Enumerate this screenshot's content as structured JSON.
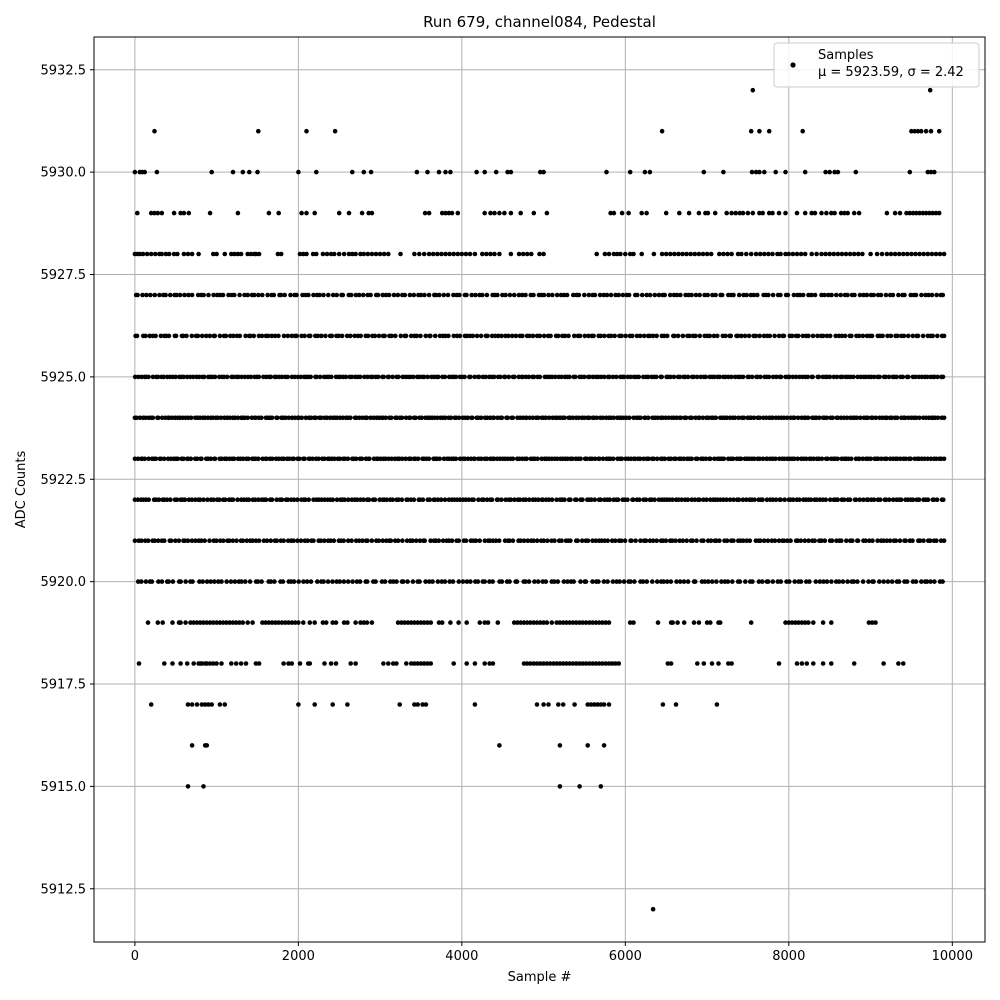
{
  "chart_data": {
    "type": "scatter",
    "title": "Run 679, channel084, Pedestal",
    "xlabel": "Sample #",
    "ylabel": "ADC Counts",
    "xlim": [
      -500,
      10400
    ],
    "ylim": [
      5911.2,
      5933.3
    ],
    "xticks": [
      0,
      2000,
      4000,
      6000,
      8000,
      10000
    ],
    "yticks": [
      5912.5,
      5915.0,
      5917.5,
      5920.0,
      5922.5,
      5925.0,
      5927.5,
      5930.0,
      5932.5
    ],
    "xtick_labels": [
      "0",
      "2000",
      "4000",
      "6000",
      "8000",
      "10000"
    ],
    "ytick_labels": [
      "5912.5",
      "5915.0",
      "5917.5",
      "5920.0",
      "5922.5",
      "5925.0",
      "5927.5",
      "5930.0",
      "5932.5"
    ],
    "grid": true,
    "legend": {
      "placement": "top-right",
      "entries": [
        {
          "name": "Samples",
          "stat": "μ = 5923.59, σ = 2.42"
        }
      ]
    },
    "series": [
      {
        "name": "Samples",
        "color": "#000000",
        "mean": 5923.59,
        "sigma": 2.42,
        "x_range": [
          0,
          9900
        ],
        "dense_levels": [
          {
            "y": 5928,
            "x": [
              0,
              30,
              60,
              100,
              150,
              200,
              250,
              300,
              330,
              380,
              420,
              480,
              520,
              600,
              650,
              700,
              780,
              960,
              1000,
              1100,
              1180,
              1220,
              1260,
              1300,
              1380,
              1420,
              1460,
              1480,
              1520,
              1750,
              1790,
              2020,
              2060,
              2100,
              2180,
              2220,
              2300,
              2350,
              2400,
              2440,
              2500,
              2560,
              2620,
              2660,
              2700,
              2760,
              2800,
              2850,
              2900,
              2950,
              3000,
              3050,
              3100,
              3250,
              3420,
              3480,
              3540,
              3600,
              3650,
              3700,
              3750,
              3800,
              3850,
              3900,
              3950,
              4000,
              4050,
              4100,
              4160,
              4250,
              4300,
              4350,
              4400,
              4460,
              4600,
              4700,
              4750,
              4800,
              4850,
              4950,
              5000,
              5650,
              5750,
              5800,
              5860,
              5900,
              5940,
              6000,
              6060,
              6100,
              6200,
              6350,
              6450,
              6500,
              6550,
              6600,
              6650,
              6700,
              6750,
              6800,
              6850,
              6900,
              6950,
              7000,
              7050,
              7150,
              7200,
              7250,
              7300,
              7380,
              7420,
              7480,
              7540,
              7600,
              7650,
              7700,
              7750,
              7800,
              7860,
              7900,
              7960,
              8000,
              8050,
              8100,
              8150,
              8200,
              8280,
              8340,
              8400,
              8450,
              8500,
              8550,
              8600,
              8650,
              8700,
              8750,
              8800,
              8850,
              8900,
              9000,
              9080,
              9140,
              9200,
              9250,
              9300,
              9350,
              9400,
              9450,
              9500,
              9550,
              9600,
              9650,
              9700,
              9750,
              9800,
              9850,
              9900
            ]
          },
          {
            "y": 5927,
            "x_range": [
              0,
              9900
            ],
            "count": 210
          },
          {
            "y": 5926,
            "x_range": [
              0,
              9900
            ],
            "count": 230
          },
          {
            "y": 5925,
            "x_range": [
              0,
              9900
            ],
            "count": 280
          },
          {
            "y": 5924,
            "x_range": [
              0,
              9900
            ],
            "count": 300
          },
          {
            "y": 5923,
            "x_range": [
              0,
              9900
            ],
            "count": 300
          },
          {
            "y": 5922,
            "x_range": [
              0,
              9900
            ],
            "count": 270
          },
          {
            "y": 5921,
            "x_range": [
              0,
              9900
            ],
            "count": 240
          },
          {
            "y": 5920,
            "x_range": [
              30,
              9900
            ],
            "count": 200
          }
        ],
        "points": [
          {
            "y": 5932,
            "x": [
              7560,
              9730
            ]
          },
          {
            "y": 5931,
            "x": [
              240,
              1510,
              2100,
              2450,
              6450,
              7540,
              7640,
              7760,
              8170,
              9500,
              9540,
              9580,
              9620,
              9680,
              9740,
              9840
            ]
          },
          {
            "y": 5930,
            "x": [
              0,
              60,
              90,
              120,
              270,
              940,
              1200,
              1320,
              1400,
              1500,
              2000,
              2220,
              2660,
              2800,
              2890,
              3450,
              3580,
              3720,
              3800,
              3860,
              4180,
              4280,
              4420,
              4560,
              4600,
              4960,
              5000,
              5770,
              6060,
              6240,
              6300,
              6960,
              7200,
              7550,
              7600,
              7640,
              7700,
              7840,
              7960,
              8200,
              8450,
              8500,
              8560,
              8600,
              8820,
              9480,
              9700,
              9740,
              9780
            ]
          },
          {
            "y": 5929,
            "x": [
              30,
              200,
              240,
              280,
              330,
              480,
              560,
              600,
              660,
              920,
              1260,
              1640,
              1760,
              2040,
              2100,
              2200,
              2500,
              2620,
              2780,
              2860,
              2900,
              3550,
              3600,
              3760,
              3800,
              3840,
              3880,
              3950,
              4280,
              4350,
              4400,
              4460,
              4520,
              4600,
              4720,
              4880,
              5040,
              5820,
              5860,
              5960,
              6040,
              6200,
              6260,
              6500,
              6660,
              6780,
              6900,
              6980,
              7010,
              7100,
              7240,
              7300,
              7350,
              7400,
              7440,
              7500,
              7560,
              7640,
              7680,
              7760,
              7800,
              7880,
              7960,
              8100,
              8200,
              8280,
              8320,
              8400,
              8460,
              8520,
              8560,
              8640,
              8680,
              8720,
              8800,
              8860,
              9200,
              9300,
              9360,
              9440,
              9480,
              9520,
              9560,
              9600,
              9640,
              9680,
              9720,
              9760,
              9800,
              9840
            ]
          },
          {
            "y": 5919,
            "x": [
              160,
              280,
              340,
              460,
              540,
              560,
              620,
              680,
              720,
              760,
              800,
              840,
              880,
              920,
              960,
              1000,
              1040,
              1080,
              1120,
              1160,
              1200,
              1240,
              1280,
              1320,
              1380,
              1440,
              1560,
              1600,
              1640,
              1680,
              1720,
              1760,
              1800,
              1840,
              1880,
              1920,
              1960,
              2000,
              2060,
              2140,
              2200,
              2300,
              2340,
              2420,
              2460,
              2560,
              2600,
              2700,
              2760,
              2800,
              2840,
              2900,
              3220,
              3260,
              3300,
              3340,
              3380,
              3420,
              3460,
              3500,
              3540,
              3580,
              3620,
              3720,
              3760,
              3860,
              3960,
              4060,
              4220,
              4280,
              4320,
              4440,
              4640,
              4680,
              4720,
              4760,
              4800,
              4840,
              4880,
              4920,
              4960,
              5000,
              5040,
              5100,
              5160,
              5200,
              5240,
              5280,
              5320,
              5360,
              5400,
              5440,
              5480,
              5520,
              5560,
              5600,
              5640,
              5680,
              5720,
              5760,
              5800,
              6060,
              6100,
              6400,
              6560,
              6580,
              6640,
              6720,
              6840,
              6900,
              7000,
              7040,
              7140,
              7160,
              7540,
              7960,
              8000,
              8040,
              8080,
              8120,
              8160,
              8200,
              8240,
              8300,
              8420,
              8520,
              8980,
              9020,
              9060
            ]
          },
          {
            "y": 5918,
            "x": [
              50,
              360,
              460,
              560,
              640,
              720,
              780,
              800,
              820,
              860,
              880,
              920,
              960,
              1000,
              1060,
              1180,
              1240,
              1300,
              1360,
              1480,
              1520,
              1820,
              1880,
              1920,
              2020,
              2120,
              2140,
              2320,
              2400,
              2460,
              2640,
              2700,
              3040,
              3100,
              3160,
              3200,
              3320,
              3380,
              3420,
              3460,
              3500,
              3540,
              3580,
              3620,
              3900,
              4060,
              4160,
              4280,
              4340,
              4380,
              4760,
              4800,
              4840,
              4880,
              4920,
              4960,
              5000,
              5040,
              5080,
              5120,
              5160,
              5200,
              5240,
              5280,
              5320,
              5360,
              5400,
              5440,
              5480,
              5520,
              5560,
              5600,
              5640,
              5680,
              5720,
              5760,
              5800,
              5840,
              5880,
              5920,
              6520,
              6560,
              6880,
              6960,
              7060,
              7140,
              7260,
              7300,
              7880,
              8100,
              8160,
              8220,
              8300,
              8420,
              8520,
              8800,
              9160,
              9340,
              9400
            ]
          },
          {
            "y": 5917,
            "x": [
              200,
              650,
              700,
              760,
              820,
              860,
              900,
              940,
              1040,
              1100,
              2000,
              2200,
              2420,
              2600,
              3240,
              3420,
              3460,
              3520,
              3560,
              4160,
              4920,
              5000,
              5060,
              5180,
              5240,
              5380,
              5540,
              5580,
              5620,
              5660,
              5700,
              5740,
              5800,
              6460,
              6620,
              7120
            ]
          },
          {
            "y": 5916,
            "x": [
              700,
              860,
              880,
              4460,
              5200,
              5540,
              5740
            ]
          },
          {
            "y": 5915,
            "x": [
              650,
              840,
              5200,
              5440,
              5700
            ]
          },
          {
            "y": 5912,
            "x": [
              6340
            ]
          }
        ]
      }
    ]
  }
}
